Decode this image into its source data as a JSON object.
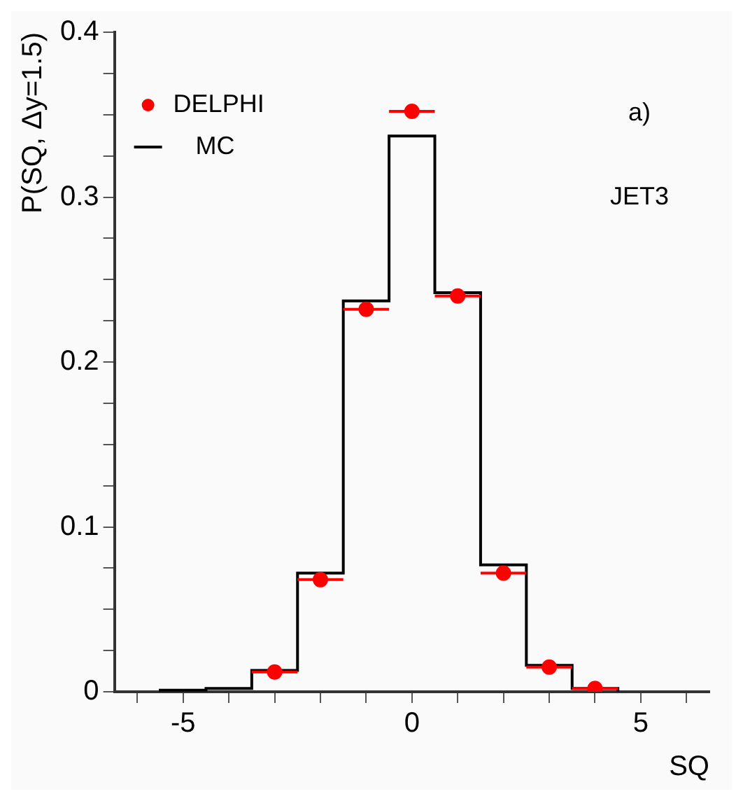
{
  "chart_data": {
    "type": "histogram",
    "ylabel": "P(SQ, Δy=1.5)",
    "xlabel": "SQ",
    "annotations": [
      "a)",
      "JET3"
    ],
    "xlim": [
      -6.5,
      6.5
    ],
    "xticks": [
      {
        "value": -6,
        "label": null
      },
      -5,
      {
        "value": -4,
        "label": null
      },
      {
        "value": -3,
        "label": null
      },
      {
        "value": -2,
        "label": null
      },
      {
        "value": -1,
        "label": null
      },
      0,
      {
        "value": 1,
        "label": null
      },
      {
        "value": 2,
        "label": null
      },
      {
        "value": 3,
        "label": null
      },
      {
        "value": 4,
        "label": null
      },
      5,
      {
        "value": 6,
        "label": null
      }
    ],
    "ylim": [
      0,
      0.4
    ],
    "yticks": [
      0,
      {
        "value": 0.025,
        "label": null
      },
      {
        "value": 0.05,
        "label": null
      },
      {
        "value": 0.075,
        "label": null
      },
      0.1,
      {
        "value": 0.125,
        "label": null
      },
      {
        "value": 0.15,
        "label": null
      },
      {
        "value": 0.175,
        "label": null
      },
      0.2,
      {
        "value": 0.225,
        "label": null
      },
      {
        "value": 0.25,
        "label": null
      },
      {
        "value": 0.275,
        "label": null
      },
      0.3,
      {
        "value": 0.325,
        "label": null
      },
      {
        "value": 0.35,
        "label": null
      },
      {
        "value": 0.375,
        "label": null
      },
      0.4
    ],
    "legend": "top left",
    "grid": false,
    "series": [
      {
        "name": "DELPHI",
        "type": "scatter",
        "marker": "circle",
        "color": "#ff0000",
        "x": [
          -3,
          -2,
          -1,
          0,
          1,
          2,
          3,
          4
        ],
        "values": [
          0.012,
          0.068,
          0.232,
          0.352,
          0.24,
          0.072,
          0.015,
          0.002
        ],
        "xerrors": [
          0.5,
          0.5,
          0.5,
          0.5,
          0.5,
          0.5,
          0.5,
          0.5
        ]
      },
      {
        "name": "MC",
        "color": "#000000",
        "bins": [
          -5.5,
          -4.5,
          -3.5,
          -2.5,
          -1.5,
          -0.5,
          0.5,
          1.5,
          2.5,
          3.5,
          4.5
        ],
        "values": [
          0.001,
          0.002,
          0.013,
          0.072,
          0.237,
          0.337,
          0.242,
          0.077,
          0.016,
          0.002
        ]
      }
    ]
  }
}
